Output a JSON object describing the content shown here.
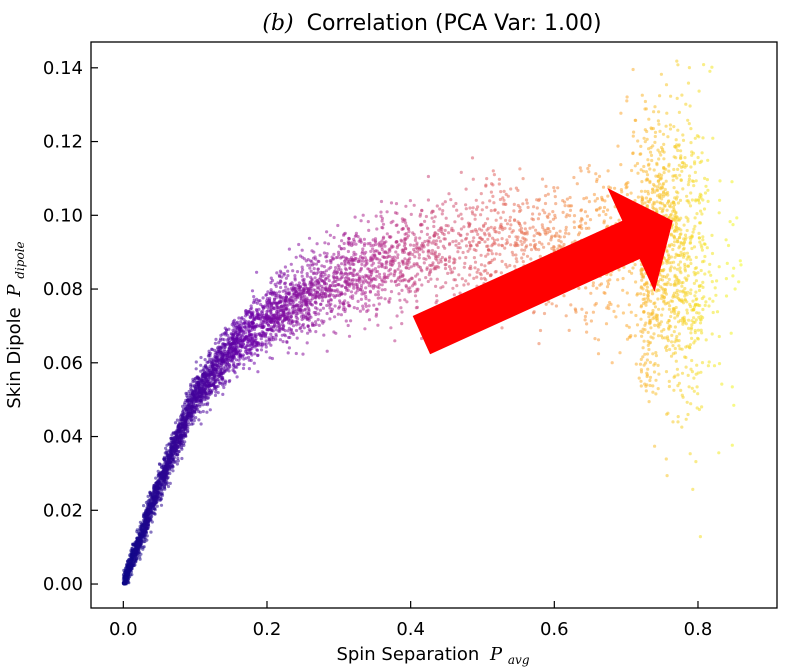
{
  "chart_data": {
    "type": "scatter",
    "title_prefix": "(b)",
    "title": "Correlation (PCA Var: 1.00)",
    "xlabel_text": "Spin Separation",
    "xlabel_symbol": "P",
    "xlabel_subscript": "avg",
    "ylabel_text": "Skin Dipole",
    "ylabel_symbol": "P",
    "ylabel_subscript": "dipole",
    "xlim": [
      -0.045,
      0.91
    ],
    "ylim": [
      -0.0065,
      0.147
    ],
    "xticks": [
      0.0,
      0.2,
      0.4,
      0.6,
      0.8
    ],
    "xtick_labels": [
      "0.0",
      "0.2",
      "0.4",
      "0.6",
      "0.8"
    ],
    "yticks": [
      0.0,
      0.02,
      0.04,
      0.06,
      0.08,
      0.1,
      0.12,
      0.14
    ],
    "ytick_labels": [
      "0.00",
      "0.02",
      "0.04",
      "0.06",
      "0.08",
      "0.10",
      "0.12",
      "0.14"
    ],
    "grid": false,
    "colormap": [
      "#0d0887",
      "#6a00a8",
      "#b12a90",
      "#e16462",
      "#fca636",
      "#f0f921"
    ],
    "point_count": 6000,
    "trend": {
      "description": "y rises steeply then saturates: y ~ 0.094*(1-exp(-x/0.13)) with noise widening at high x",
      "curve_x": [
        0.0,
        0.05,
        0.1,
        0.15,
        0.2,
        0.3,
        0.4,
        0.5,
        0.6,
        0.7,
        0.8,
        0.86
      ],
      "curve_y": [
        0.0,
        0.027,
        0.051,
        0.064,
        0.072,
        0.083,
        0.089,
        0.092,
        0.093,
        0.092,
        0.088,
        0.087
      ]
    },
    "arrow": {
      "color": "#ff0000",
      "tail": [
        0.415,
        0.0675
      ],
      "head": [
        0.765,
        0.0985
      ]
    }
  }
}
